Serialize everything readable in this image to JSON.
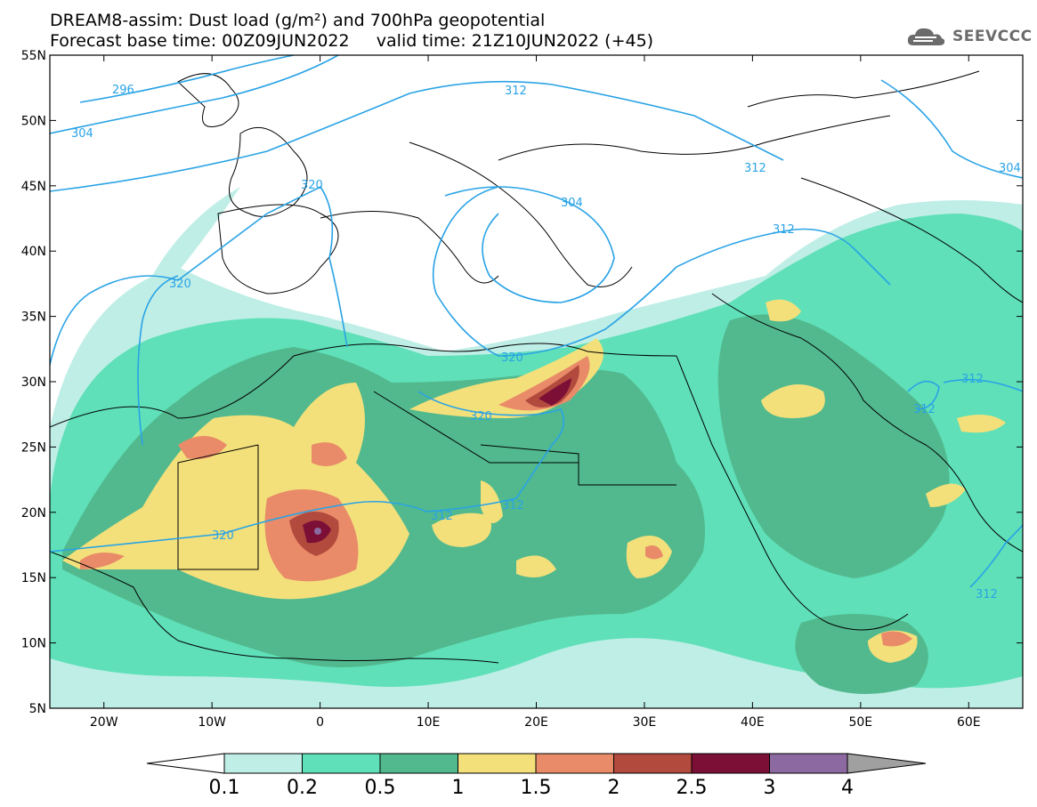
{
  "header": {
    "title_line1": "DREAM8-assim: Dust load (g/m²) and 700hPa geopotential",
    "title_line2": "Forecast base time: 00Z09JUN2022     valid time: 21Z10JUN2022 (+45)",
    "logo_text": "SEEVCCC"
  },
  "map": {
    "lon_range": [
      -25,
      65
    ],
    "lat_range": [
      5,
      55
    ],
    "lat_ticks": [
      "55N",
      "50N",
      "45N",
      "40N",
      "35N",
      "30N",
      "25N",
      "20N",
      "15N",
      "10N",
      "5N"
    ],
    "lon_ticks": [
      "20W",
      "10W",
      "0",
      "10E",
      "20E",
      "30E",
      "40E",
      "50E",
      "60E"
    ],
    "contour_labels": [
      "296",
      "304",
      "312",
      "312",
      "304",
      "304",
      "320",
      "320",
      "312",
      "320",
      "320",
      "320",
      "312",
      "312",
      "312"
    ],
    "colors": {
      "contour": "#29a3e6",
      "coast": "#000000"
    }
  },
  "colorbar": {
    "levels": [
      "0.1",
      "0.2",
      "0.5",
      "1",
      "1.5",
      "2",
      "2.5",
      "3",
      "4"
    ],
    "colors": [
      "#ffffff",
      "#bfeee6",
      "#5fe0b8",
      "#52b98e",
      "#f3e07b",
      "#e98b68",
      "#b24a3e",
      "#7c0f36",
      "#8c6aa1",
      "#a0a0a0"
    ]
  }
}
